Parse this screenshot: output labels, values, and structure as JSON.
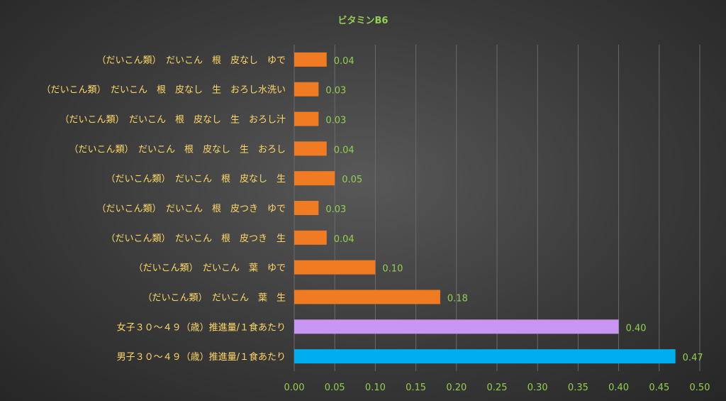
{
  "chart_data": {
    "type": "bar",
    "orientation": "horizontal",
    "title": "ビタミンB6",
    "xlabel": "",
    "ylabel": "",
    "xlim": [
      0,
      0.5
    ],
    "xticks": [
      "0.00",
      "0.05",
      "0.10",
      "0.15",
      "0.20",
      "0.25",
      "0.30",
      "0.35",
      "0.40",
      "0.45",
      "0.50"
    ],
    "grid": "vertical",
    "legend": "none",
    "categories": [
      "（だいこん類）　だいこん　根　皮なし　ゆで",
      "（だいこん類）　だいこん　根　皮なし　生　おろし水洗い",
      "（だいこん類）　だいこん　根　皮なし　生　おろし汁",
      "（だいこん類）　だいこん　根　皮なし　生　おろし",
      "（だいこん類）　だいこん　根　皮なし　生",
      "（だいこん類）　だいこん　根　皮つき　ゆで",
      "（だいこん類）　だいこん　根　皮つき　生",
      "（だいこん類）　だいこん　葉　ゆで",
      "（だいこん類）　だいこん　葉　生",
      "女子３０～４９（歳）推進量/１食あたり",
      "男子３０～４９（歳）推進量/１食あたり"
    ],
    "values": [
      0.04,
      0.03,
      0.03,
      0.04,
      0.05,
      0.03,
      0.04,
      0.1,
      0.18,
      0.4,
      0.47
    ],
    "labels": [
      "0.04",
      "0.03",
      "0.03",
      "0.04",
      "0.05",
      "0.03",
      "0.04",
      "0.10",
      "0.18",
      "0.40",
      "0.47"
    ],
    "bar_colors": [
      "#f07b22",
      "#f07b22",
      "#f07b22",
      "#f07b22",
      "#f07b22",
      "#f07b22",
      "#f07b22",
      "#f07b22",
      "#f07b22",
      "#c896f2",
      "#00aeef"
    ],
    "colors": {
      "title": "#92d050",
      "category_text": "#ffd966",
      "tick_text": "#92d050",
      "data_label": "#92d050",
      "grid": "#6a6a6a"
    }
  }
}
